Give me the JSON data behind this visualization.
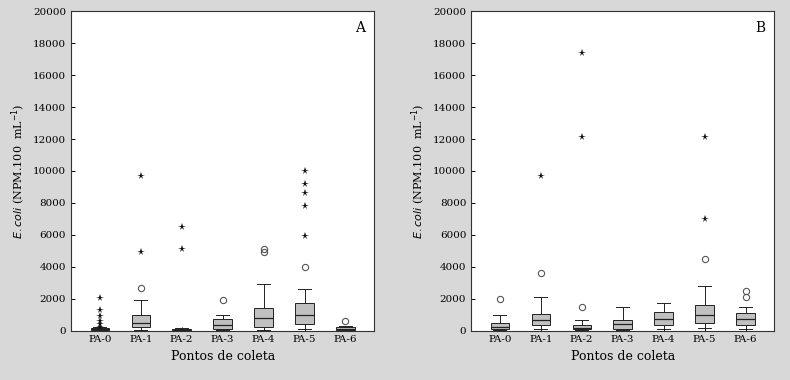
{
  "panel_A": {
    "label": "A",
    "categories": [
      "PA-0",
      "PA-1",
      "PA-2",
      "PA-3",
      "PA-4",
      "PA-5",
      "PA-6"
    ],
    "boxes": [
      {
        "q1": 30,
        "median": 80,
        "q3": 150,
        "whislo": 5,
        "whishi": 250
      },
      {
        "q1": 200,
        "median": 500,
        "q3": 950,
        "whislo": 50,
        "whishi": 1900
      },
      {
        "q1": 20,
        "median": 60,
        "q3": 120,
        "whislo": 5,
        "whishi": 170
      },
      {
        "q1": 80,
        "median": 350,
        "q3": 750,
        "whislo": 10,
        "whishi": 950
      },
      {
        "q1": 200,
        "median": 800,
        "q3": 1400,
        "whislo": 50,
        "whishi": 2900
      },
      {
        "q1": 400,
        "median": 1000,
        "q3": 1700,
        "whislo": 100,
        "whishi": 2600
      },
      {
        "q1": 40,
        "median": 100,
        "q3": 220,
        "whislo": 10,
        "whishi": 280
      }
    ],
    "fliers_circle": [
      [],
      [
        2700
      ],
      [],
      [
        1900
      ],
      [
        4900,
        5100
      ],
      [
        4000
      ],
      [
        600
      ]
    ],
    "fliers_star": [
      [
        2050,
        1300,
        900,
        600,
        400,
        250
      ],
      [
        9700,
        4900
      ],
      [
        6500,
        5100
      ],
      [],
      [],
      [
        10000,
        9200,
        8600,
        7800,
        5900
      ],
      []
    ]
  },
  "panel_B": {
    "label": "B",
    "categories": [
      "PA-0",
      "PA-1",
      "PA-2",
      "PA-3",
      "PA-4",
      "PA-5",
      "PA-6"
    ],
    "boxes": [
      {
        "q1": 80,
        "median": 250,
        "q3": 450,
        "whislo": 20,
        "whishi": 1000
      },
      {
        "q1": 350,
        "median": 650,
        "q3": 1050,
        "whislo": 100,
        "whishi": 2100
      },
      {
        "q1": 80,
        "median": 180,
        "q3": 350,
        "whislo": 30,
        "whishi": 650
      },
      {
        "q1": 130,
        "median": 400,
        "q3": 650,
        "whislo": 30,
        "whishi": 1500
      },
      {
        "q1": 350,
        "median": 750,
        "q3": 1150,
        "whislo": 100,
        "whishi": 1750
      },
      {
        "q1": 500,
        "median": 1000,
        "q3": 1600,
        "whislo": 150,
        "whishi": 2800
      },
      {
        "q1": 350,
        "median": 750,
        "q3": 1100,
        "whislo": 80,
        "whishi": 1500
      }
    ],
    "fliers_circle": [
      [
        2000
      ],
      [
        3600
      ],
      [
        1500
      ],
      [],
      [],
      [
        4500
      ],
      [
        2100,
        2450
      ]
    ],
    "fliers_star": [
      [],
      [
        9700
      ],
      [
        17400,
        12100
      ],
      [],
      [],
      [
        12100,
        7000
      ],
      []
    ]
  },
  "ylim": [
    0,
    20000
  ],
  "yticks": [
    0,
    2000,
    4000,
    6000,
    8000,
    10000,
    12000,
    14000,
    16000,
    18000,
    20000
  ],
  "xlabel": "Pontos de coleta",
  "box_color": "#c0c0c0",
  "box_edge_color": "#222222",
  "median_color": "#222222",
  "whisker_color": "#222222",
  "cap_color": "#222222",
  "flier_circle_edgecolor": "#555555",
  "flier_star_color": "#111111",
  "figure_bg": "#d8d8d8",
  "axes_bg": "#ffffff"
}
